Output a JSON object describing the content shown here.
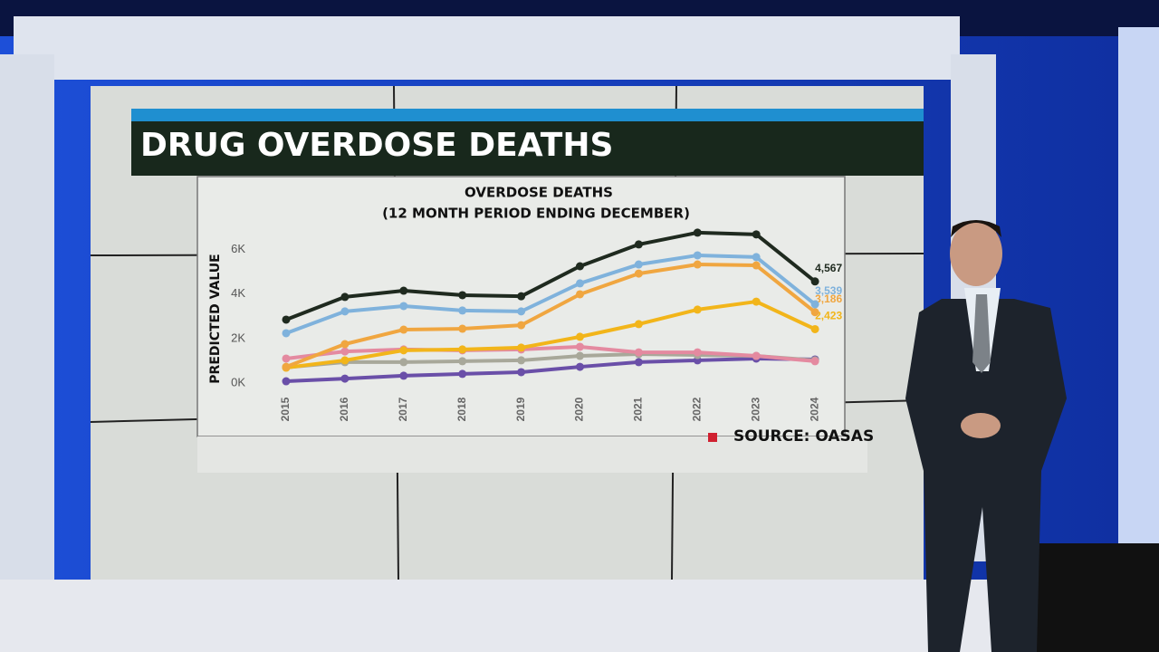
{
  "graphic_title": "DRUG OVERDOSE DEATHS",
  "source": "SOURCE: OASAS",
  "chart_data": {
    "type": "line",
    "title": "OVERDOSE DEATHS",
    "subtitle": "(12 MONTH PERIOD ENDING DECEMBER)",
    "y_label": "PREDICTED VALUE",
    "categories": [
      "2015",
      "2016",
      "2017",
      "2018",
      "2019",
      "2020",
      "2021",
      "2022",
      "2023",
      "2024"
    ],
    "ylim": [
      0,
      7000
    ],
    "yticks": [
      {
        "value": 0,
        "label": "0K"
      },
      {
        "value": 2000,
        "label": "2K"
      },
      {
        "value": 4000,
        "label": "4K"
      },
      {
        "value": 6000,
        "label": "6K"
      }
    ],
    "grid": false,
    "series": [
      {
        "color": "#6a4fa8",
        "values": [
          80,
          200,
          330,
          410,
          490,
          730,
          940,
          1020,
          1100,
          1060
        ]
      },
      {
        "color": "#a8a89a",
        "values": [
          700,
          940,
          940,
          980,
          1020,
          1220,
          1300,
          1260,
          1220,
          1020
        ]
      },
      {
        "color": "#e48aa0",
        "values": [
          1100,
          1420,
          1510,
          1470,
          1510,
          1630,
          1380,
          1380,
          1220,
          980
        ]
      },
      {
        "color": "#f2b51a",
        "values": [
          690,
          1020,
          1470,
          1510,
          1590,
          2080,
          2650,
          3300,
          3660,
          2423
        ],
        "value_labels": [
          null,
          null,
          null,
          null,
          null,
          null,
          null,
          null,
          null,
          "2,423"
        ]
      },
      {
        "color": "#f0a640",
        "values": [
          730,
          1750,
          2400,
          2440,
          2600,
          3990,
          4920,
          5330,
          5290,
          3186
        ],
        "value_labels": [
          null,
          null,
          null,
          null,
          null,
          null,
          null,
          null,
          null,
          "3,186"
        ]
      },
      {
        "color": "#7fb2dc",
        "values": [
          2240,
          3220,
          3460,
          3260,
          3220,
          4480,
          5330,
          5740,
          5660,
          3539
        ],
        "value_labels": [
          null,
          null,
          null,
          null,
          null,
          null,
          null,
          null,
          null,
          "3,539"
        ]
      },
      {
        "color": "#1f2a1f",
        "values": [
          2850,
          3870,
          4150,
          3950,
          3900,
          5250,
          6230,
          6760,
          6680,
          4567
        ],
        "value_labels": [
          null,
          null,
          null,
          null,
          null,
          null,
          null,
          null,
          null,
          "4,567"
        ]
      }
    ]
  }
}
